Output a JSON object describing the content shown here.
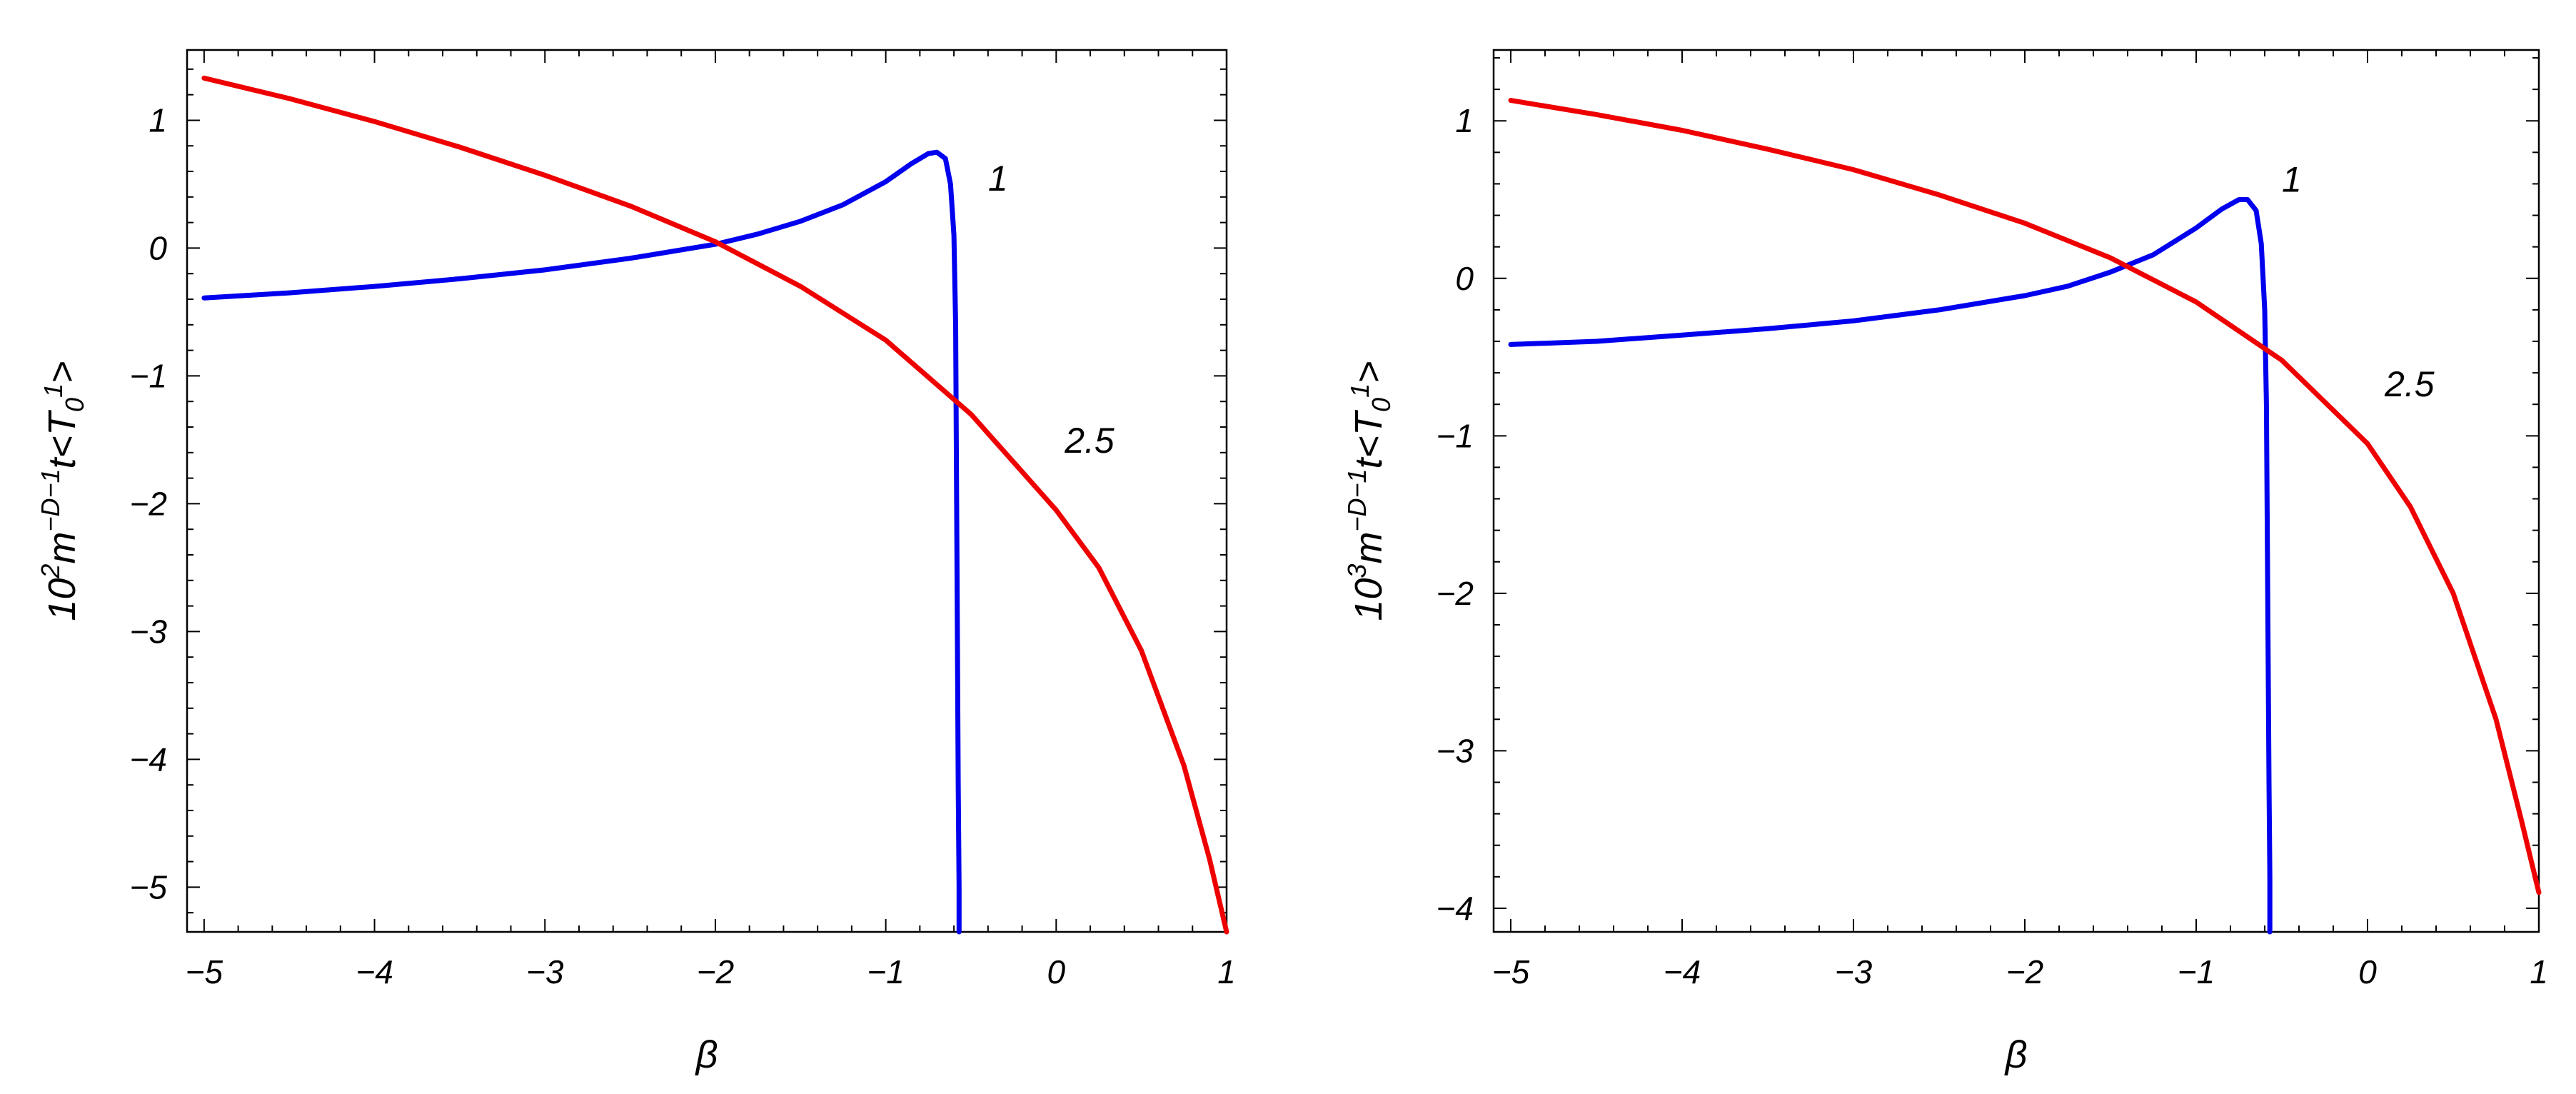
{
  "chart_data": [
    {
      "type": "line",
      "xlabel": "β",
      "ylabel": "10²m⁻ᴰ⁻¹t<T₀¹>",
      "ylabel_parts": {
        "base": "10",
        "exp": "2",
        "m": "m",
        "mexp": "−D−1",
        "t": "t<T",
        "tsub": "0",
        "tsup": "1",
        "close": ">"
      },
      "xlim": [
        -5.1,
        1.0
      ],
      "ylim": [
        -5.35,
        1.55
      ],
      "xticks": [
        -5,
        -4,
        -3,
        -2,
        -1,
        0,
        1
      ],
      "xtick_labels": [
        "−5",
        "−4",
        "−3",
        "−2",
        "−1",
        "0",
        "1"
      ],
      "yticks": [
        -5,
        -4,
        -3,
        -2,
        -1,
        0,
        1
      ],
      "ytick_labels": [
        "−5",
        "−4",
        "−3",
        "−2",
        "−1",
        "0",
        "1"
      ],
      "grid": false,
      "series": [
        {
          "label": "1",
          "color": "#0000ee",
          "label_at": [
            -0.4,
            0.45
          ],
          "x": [
            -5,
            -4.5,
            -4,
            -3.5,
            -3,
            -2.5,
            -2,
            -1.75,
            -1.5,
            -1.25,
            -1,
            -0.85,
            -0.75,
            -0.7,
            -0.65,
            -0.62,
            -0.6,
            -0.59,
            -0.585,
            -0.58,
            -0.575,
            -0.57,
            -0.57
          ],
          "y": [
            -0.39,
            -0.35,
            -0.3,
            -0.24,
            -0.17,
            -0.08,
            0.03,
            0.11,
            0.21,
            0.34,
            0.52,
            0.66,
            0.74,
            0.75,
            0.7,
            0.5,
            0.1,
            -0.6,
            -1.8,
            -3.0,
            -4.2,
            -5.0,
            -5.35
          ]
        },
        {
          "label": "2.5",
          "color": "#ee0000",
          "label_at": [
            0.05,
            -1.6
          ],
          "x": [
            -5,
            -4.5,
            -4,
            -3.5,
            -3,
            -2.5,
            -2,
            -1.5,
            -1,
            -0.5,
            0,
            0.25,
            0.5,
            0.75,
            0.9,
            1.0
          ],
          "y": [
            1.33,
            1.17,
            0.99,
            0.79,
            0.57,
            0.33,
            0.05,
            -0.3,
            -0.72,
            -1.3,
            -2.05,
            -2.5,
            -3.15,
            -4.05,
            -4.78,
            -5.35
          ]
        }
      ]
    },
    {
      "type": "line",
      "xlabel": "β",
      "ylabel": "10³m⁻ᴰ⁻¹t<T₀¹>",
      "ylabel_parts": {
        "base": "10",
        "exp": "3",
        "m": "m",
        "mexp": "−D−1",
        "t": "t<T",
        "tsub": "0",
        "tsup": "1",
        "close": ">"
      },
      "xlim": [
        -5.1,
        1.0
      ],
      "ylim": [
        -4.15,
        1.45
      ],
      "xticks": [
        -5,
        -4,
        -3,
        -2,
        -1,
        0,
        1
      ],
      "xtick_labels": [
        "−5",
        "−4",
        "−3",
        "−2",
        "−1",
        "0",
        "1"
      ],
      "yticks": [
        -4,
        -3,
        -2,
        -1,
        0,
        1
      ],
      "ytick_labels": [
        "−4",
        "−3",
        "−2",
        "−1",
        "0",
        "1"
      ],
      "grid": false,
      "series": [
        {
          "label": "1",
          "color": "#0000ee",
          "label_at": [
            -0.5,
            0.55
          ],
          "x": [
            -5,
            -4.5,
            -4,
            -3.5,
            -3,
            -2.5,
            -2,
            -1.75,
            -1.5,
            -1.25,
            -1,
            -0.85,
            -0.75,
            -0.7,
            -0.65,
            -0.62,
            -0.6,
            -0.59,
            -0.585,
            -0.58,
            -0.575,
            -0.57,
            -0.57
          ],
          "y": [
            -0.42,
            -0.4,
            -0.36,
            -0.32,
            -0.27,
            -0.2,
            -0.11,
            -0.05,
            0.04,
            0.15,
            0.32,
            0.44,
            0.5,
            0.5,
            0.43,
            0.22,
            -0.2,
            -0.8,
            -1.6,
            -2.4,
            -3.2,
            -3.8,
            -4.15
          ]
        },
        {
          "label": "2.5",
          "color": "#ee0000",
          "label_at": [
            0.1,
            -0.75
          ],
          "x": [
            -5,
            -4.5,
            -4,
            -3.5,
            -3,
            -2.5,
            -2,
            -1.5,
            -1,
            -0.5,
            0,
            0.25,
            0.5,
            0.75,
            0.9,
            1.0
          ],
          "y": [
            1.13,
            1.04,
            0.94,
            0.82,
            0.69,
            0.53,
            0.35,
            0.13,
            -0.15,
            -0.52,
            -1.05,
            -1.45,
            -2.0,
            -2.8,
            -3.45,
            -3.9
          ]
        }
      ]
    }
  ]
}
